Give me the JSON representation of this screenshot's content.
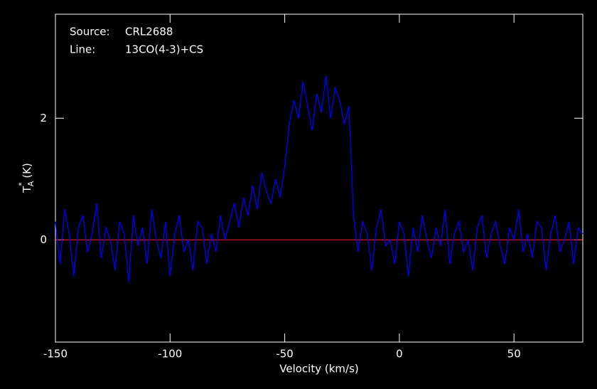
{
  "chart_data": {
    "type": "line",
    "annotations": [
      {
        "label": "Source:",
        "text": "CRL2688"
      },
      {
        "label": "Line:",
        "text": "13CO(4-3)+CS"
      }
    ],
    "xlabel": "Velocity (km/s)",
    "ylabel": {
      "main": "T",
      "sup": "*",
      "sub": "A",
      "unit": "(K)"
    },
    "xlim": [
      -150,
      80
    ],
    "ylim": [
      -1.68,
      3.71
    ],
    "xticks": [
      -150,
      -100,
      -50,
      0,
      50
    ],
    "yticks": [
      0,
      2
    ],
    "baseline": 0,
    "baseline_color": "#ff2020",
    "series": [
      {
        "color": "#0000ff",
        "x": [
          -150,
          -148,
          -146,
          -144,
          -142,
          -140,
          -138,
          -136,
          -134,
          -132,
          -130,
          -128,
          -126,
          -124,
          -122,
          -120,
          -118,
          -116,
          -114,
          -112,
          -110,
          -108,
          -106,
          -104,
          -102,
          -100,
          -98,
          -96,
          -94,
          -92,
          -90,
          -88,
          -86,
          -84,
          -82,
          -80,
          -78,
          -76,
          -74,
          -72,
          -70,
          -68,
          -66,
          -64,
          -62,
          -60,
          -58,
          -56,
          -54,
          -52,
          -50,
          -48,
          -46,
          -44,
          -42,
          -40,
          -38,
          -36,
          -34,
          -32,
          -30,
          -28,
          -26,
          -24,
          -22,
          -20,
          -18,
          -16,
          -14,
          -12,
          -10,
          -8,
          -6,
          -4,
          -2,
          0,
          2,
          4,
          6,
          8,
          10,
          12,
          14,
          16,
          18,
          20,
          22,
          24,
          26,
          28,
          30,
          32,
          34,
          36,
          38,
          40,
          42,
          44,
          46,
          48,
          50,
          52,
          54,
          56,
          58,
          60,
          62,
          64,
          66,
          68,
          70,
          72,
          74,
          76,
          78,
          80
        ],
        "values": [
          0.3,
          -0.4,
          0.5,
          0.1,
          -0.6,
          0.2,
          0.4,
          -0.2,
          0.1,
          0.6,
          -0.3,
          0.2,
          0.0,
          -0.5,
          0.3,
          0.1,
          -0.7,
          0.4,
          -0.1,
          0.2,
          -0.4,
          0.5,
          0.0,
          -0.3,
          0.3,
          -0.6,
          0.1,
          0.4,
          -0.2,
          0.0,
          -0.5,
          0.3,
          0.2,
          -0.4,
          0.1,
          -0.2,
          0.4,
          0.0,
          0.3,
          0.6,
          0.2,
          0.7,
          0.4,
          0.9,
          0.5,
          1.1,
          0.8,
          0.6,
          1.0,
          0.7,
          1.2,
          1.9,
          2.3,
          2.0,
          2.6,
          2.2,
          1.8,
          2.4,
          2.1,
          2.7,
          2.0,
          2.5,
          2.3,
          1.9,
          2.2,
          0.4,
          -0.2,
          0.3,
          0.1,
          -0.5,
          0.2,
          0.5,
          -0.1,
          0.0,
          -0.4,
          0.3,
          0.1,
          -0.6,
          0.2,
          -0.2,
          0.4,
          0.0,
          -0.3,
          0.2,
          -0.1,
          0.5,
          -0.4,
          0.1,
          0.3,
          -0.2,
          0.0,
          -0.5,
          0.2,
          0.4,
          -0.3,
          0.1,
          0.3,
          -0.1,
          -0.4,
          0.2,
          0.0,
          0.5,
          -0.2,
          0.1,
          -0.3,
          0.3,
          0.2,
          -0.5,
          0.1,
          0.4,
          -0.2,
          0.0,
          0.3,
          -0.4,
          0.2,
          0.1
        ]
      }
    ]
  }
}
